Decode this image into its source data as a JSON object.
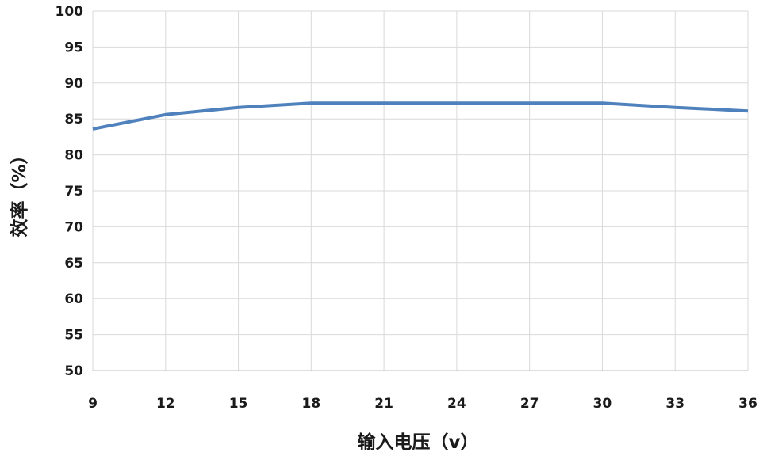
{
  "chart_data": {
    "type": "line",
    "title": "",
    "xlabel": "输入电压（v）",
    "ylabel": "效率（%）",
    "x": [
      9,
      12,
      15,
      18,
      21,
      24,
      27,
      30,
      33,
      36
    ],
    "x_ticks": [
      "9",
      "12",
      "15",
      "18",
      "21",
      "24",
      "27",
      "30",
      "33",
      "36"
    ],
    "y_ticks": [
      "100",
      "95",
      "90",
      "85",
      "80",
      "75",
      "70",
      "65",
      "60",
      "55",
      "50"
    ],
    "xlim": [
      9,
      36
    ],
    "ylim": [
      50,
      100
    ],
    "grid": true,
    "legend": "none",
    "series": [
      {
        "color": "#4f81bd",
        "values": [
          83.6,
          85.6,
          86.6,
          87.2,
          87.2,
          87.2,
          87.2,
          87.2,
          86.6,
          86.1
        ]
      }
    ]
  }
}
